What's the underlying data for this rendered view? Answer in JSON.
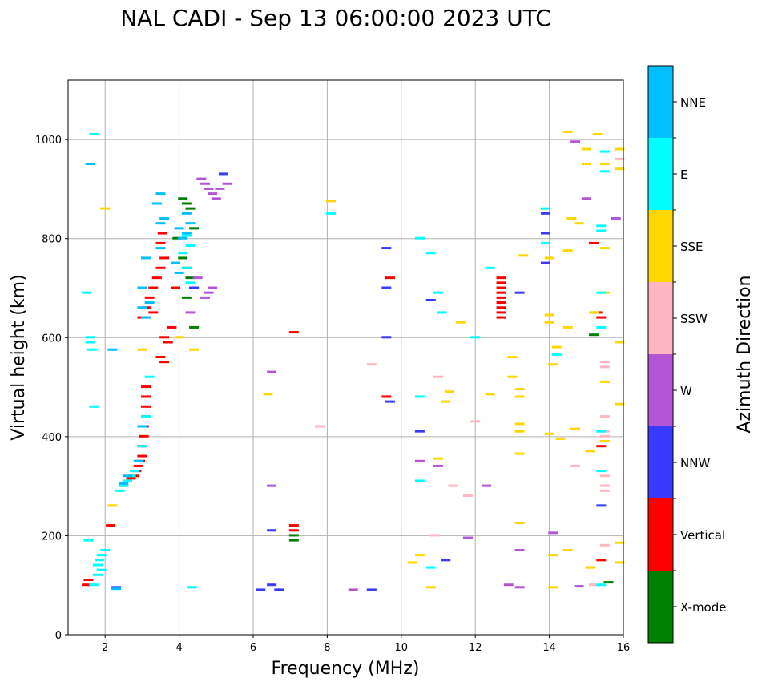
{
  "chart_data": {
    "type": "scatter",
    "title": "NAL CADI - Sep 13 06:00:00 2023 UTC",
    "xlabel": "Frequency (MHz)",
    "ylabel": "Virtual height (km)",
    "xlim": [
      1,
      16
    ],
    "ylim": [
      0,
      1120
    ],
    "xticks": [
      2,
      4,
      6,
      8,
      10,
      12,
      14,
      16
    ],
    "yticks": [
      0,
      200,
      400,
      600,
      800,
      1000
    ],
    "grid": true,
    "colorbar": {
      "label": "Azimuth Direction",
      "categories": [
        {
          "name": "X-mode",
          "color": "#008000"
        },
        {
          "name": "Vertical",
          "color": "#ff0000"
        },
        {
          "name": "NNW",
          "color": "#3a3aff"
        },
        {
          "name": "W",
          "color": "#b455d6"
        },
        {
          "name": "SSW",
          "color": "#ffb6c1"
        },
        {
          "name": "SSE",
          "color": "#ffd700"
        },
        {
          "name": "E",
          "color": "#00ffff"
        },
        {
          "name": "NNE",
          "color": "#00bfff"
        }
      ]
    },
    "series": [
      {
        "name": "Vertical",
        "points": [
          [
            1.5,
            100
          ],
          [
            1.55,
            110
          ],
          [
            2.15,
            220
          ],
          [
            2.5,
            300
          ],
          [
            2.6,
            310
          ],
          [
            2.7,
            315
          ],
          [
            2.8,
            320
          ],
          [
            2.85,
            330
          ],
          [
            2.9,
            340
          ],
          [
            2.95,
            350
          ],
          [
            3.0,
            360
          ],
          [
            3.0,
            380
          ],
          [
            3.05,
            400
          ],
          [
            3.05,
            420
          ],
          [
            3.1,
            440
          ],
          [
            3.1,
            460
          ],
          [
            3.1,
            480
          ],
          [
            3.1,
            500
          ],
          [
            3.0,
            640
          ],
          [
            3.1,
            660
          ],
          [
            3.2,
            680
          ],
          [
            3.3,
            700
          ],
          [
            3.4,
            720
          ],
          [
            3.5,
            740
          ],
          [
            3.6,
            760
          ],
          [
            3.5,
            790
          ],
          [
            3.55,
            810
          ],
          [
            3.6,
            600
          ],
          [
            3.7,
            590
          ],
          [
            3.8,
            620
          ],
          [
            3.5,
            560
          ],
          [
            3.6,
            550
          ],
          [
            3.9,
            700
          ],
          [
            3.3,
            650
          ],
          [
            12.7,
            640
          ],
          [
            12.7,
            650
          ],
          [
            12.7,
            660
          ],
          [
            12.7,
            670
          ],
          [
            12.7,
            680
          ],
          [
            12.7,
            690
          ],
          [
            12.7,
            700
          ],
          [
            12.7,
            710
          ],
          [
            12.7,
            720
          ],
          [
            15.2,
            790
          ],
          [
            15.3,
            650
          ],
          [
            15.4,
            640
          ],
          [
            15.4,
            380
          ],
          [
            15.4,
            150
          ],
          [
            9.7,
            720
          ],
          [
            9.6,
            480
          ],
          [
            7.1,
            610
          ],
          [
            7.1,
            220
          ],
          [
            7.1,
            210
          ]
        ]
      },
      {
        "name": "X-mode",
        "points": [
          [
            4.1,
            880
          ],
          [
            4.2,
            870
          ],
          [
            4.3,
            860
          ],
          [
            4.4,
            820
          ],
          [
            4.1,
            760
          ],
          [
            4.2,
            740
          ],
          [
            4.3,
            720
          ],
          [
            4.4,
            700
          ],
          [
            4.2,
            680
          ],
          [
            3.95,
            800
          ],
          [
            7.1,
            200
          ],
          [
            7.1,
            190
          ],
          [
            15.2,
            605
          ],
          [
            15.6,
            105
          ],
          [
            4.4,
            620
          ]
        ]
      },
      {
        "name": "NNW",
        "points": [
          [
            2.3,
            95
          ],
          [
            5.2,
            930
          ],
          [
            6.5,
            210
          ],
          [
            6.5,
            100
          ],
          [
            6.2,
            90
          ],
          [
            6.7,
            90
          ],
          [
            9.2,
            90
          ],
          [
            9.6,
            780
          ],
          [
            9.6,
            700
          ],
          [
            9.6,
            600
          ],
          [
            9.7,
            470
          ],
          [
            10.5,
            410
          ],
          [
            10.8,
            675
          ],
          [
            11.2,
            150
          ],
          [
            13.2,
            690
          ],
          [
            13.9,
            850
          ],
          [
            13.9,
            810
          ],
          [
            13.9,
            750
          ],
          [
            15.4,
            260
          ],
          [
            4.4,
            700
          ]
        ]
      },
      {
        "name": "W",
        "points": [
          [
            4.6,
            920
          ],
          [
            4.7,
            910
          ],
          [
            4.8,
            900
          ],
          [
            4.9,
            890
          ],
          [
            5.0,
            880
          ],
          [
            5.1,
            900
          ],
          [
            5.3,
            910
          ],
          [
            4.7,
            680
          ],
          [
            4.8,
            690
          ],
          [
            4.9,
            700
          ],
          [
            4.5,
            720
          ],
          [
            4.3,
            650
          ],
          [
            12.3,
            300
          ],
          [
            13.2,
            170
          ],
          [
            12.9,
            100
          ],
          [
            13.2,
            95
          ],
          [
            8.7,
            90
          ],
          [
            10.5,
            350
          ],
          [
            11.0,
            340
          ],
          [
            14.1,
            205
          ],
          [
            14.7,
            995
          ],
          [
            15.0,
            880
          ],
          [
            15.8,
            840
          ],
          [
            6.5,
            300
          ],
          [
            6.5,
            530
          ],
          [
            11.8,
            195
          ],
          [
            14.8,
            97
          ]
        ]
      },
      {
        "name": "SSW",
        "points": [
          [
            15.5,
            410
          ],
          [
            15.5,
            400
          ],
          [
            15.5,
            320
          ],
          [
            15.5,
            300
          ],
          [
            15.5,
            290
          ],
          [
            15.5,
            180
          ],
          [
            15.5,
            440
          ],
          [
            15.5,
            550
          ],
          [
            15.5,
            540
          ],
          [
            15.9,
            960
          ],
          [
            15.2,
            100
          ],
          [
            11.4,
            300
          ],
          [
            11.0,
            520
          ],
          [
            9.2,
            545
          ],
          [
            10.9,
            200
          ],
          [
            12.0,
            430
          ],
          [
            14.7,
            340
          ],
          [
            11.8,
            280
          ],
          [
            7.8,
            420
          ]
        ]
      },
      {
        "name": "SSE",
        "points": [
          [
            14.5,
            1015
          ],
          [
            15.3,
            1010
          ],
          [
            15.0,
            980
          ],
          [
            15.9,
            980
          ],
          [
            15.0,
            950
          ],
          [
            15.5,
            950
          ],
          [
            15.9,
            940
          ],
          [
            14.6,
            840
          ],
          [
            14.8,
            830
          ],
          [
            14.5,
            775
          ],
          [
            13.3,
            765
          ],
          [
            14.0,
            760
          ],
          [
            14.0,
            645
          ],
          [
            14.0,
            630
          ],
          [
            13.0,
            560
          ],
          [
            13.0,
            520
          ],
          [
            13.2,
            495
          ],
          [
            13.2,
            480
          ],
          [
            12.4,
            485
          ],
          [
            13.2,
            425
          ],
          [
            13.2,
            410
          ],
          [
            13.2,
            365
          ],
          [
            13.2,
            225
          ],
          [
            14.0,
            405
          ],
          [
            14.3,
            395
          ],
          [
            14.7,
            415
          ],
          [
            15.1,
            370
          ],
          [
            15.5,
            390
          ],
          [
            15.5,
            510
          ],
          [
            15.9,
            465
          ],
          [
            15.9,
            590
          ],
          [
            15.9,
            185
          ],
          [
            15.9,
            145
          ],
          [
            15.1,
            135
          ],
          [
            14.1,
            160
          ],
          [
            14.5,
            170
          ],
          [
            14.1,
            95
          ],
          [
            14.5,
            620
          ],
          [
            15.2,
            650
          ],
          [
            10.3,
            145
          ],
          [
            10.5,
            160
          ],
          [
            10.8,
            95
          ],
          [
            11.2,
            470
          ],
          [
            11.0,
            355
          ],
          [
            11.3,
            490
          ],
          [
            11.6,
            630
          ],
          [
            8.1,
            875
          ],
          [
            6.4,
            485
          ],
          [
            3.0,
            575
          ],
          [
            4.4,
            575
          ],
          [
            2.2,
            260
          ],
          [
            2.0,
            860
          ],
          [
            4.0,
            600
          ],
          [
            15.5,
            780
          ],
          [
            15.5,
            690
          ],
          [
            14.2,
            580
          ],
          [
            14.1,
            545
          ]
        ]
      },
      {
        "name": "E",
        "points": [
          [
            1.7,
            100
          ],
          [
            1.8,
            120
          ],
          [
            1.9,
            130
          ],
          [
            1.8,
            140
          ],
          [
            1.85,
            150
          ],
          [
            1.9,
            160
          ],
          [
            2.0,
            170
          ],
          [
            1.55,
            190
          ],
          [
            1.5,
            690
          ],
          [
            1.6,
            600
          ],
          [
            1.6,
            590
          ],
          [
            1.65,
            575
          ],
          [
            1.7,
            460
          ],
          [
            1.7,
            1010
          ],
          [
            2.4,
            290
          ],
          [
            2.5,
            300
          ],
          [
            2.6,
            310
          ],
          [
            2.7,
            320
          ],
          [
            2.8,
            330
          ],
          [
            3.0,
            380
          ],
          [
            3.1,
            440
          ],
          [
            3.2,
            520
          ],
          [
            4.2,
            805
          ],
          [
            4.3,
            785
          ],
          [
            4.1,
            770
          ],
          [
            4.2,
            740
          ],
          [
            4.3,
            710
          ],
          [
            4.35,
            95
          ],
          [
            8.1,
            850
          ],
          [
            10.5,
            800
          ],
          [
            10.8,
            770
          ],
          [
            11.0,
            690
          ],
          [
            11.1,
            650
          ],
          [
            12.0,
            600
          ],
          [
            12.4,
            740
          ],
          [
            10.5,
            310
          ],
          [
            10.5,
            480
          ],
          [
            10.8,
            135
          ],
          [
            13.9,
            860
          ],
          [
            13.9,
            790
          ],
          [
            14.2,
            565
          ],
          [
            15.4,
            825
          ],
          [
            15.4,
            815
          ],
          [
            15.4,
            690
          ],
          [
            15.4,
            620
          ],
          [
            15.4,
            410
          ],
          [
            15.4,
            330
          ],
          [
            15.4,
            100
          ],
          [
            15.5,
            935
          ],
          [
            15.5,
            975
          ]
        ]
      },
      {
        "name": "NNE",
        "points": [
          [
            1.6,
            950
          ],
          [
            2.2,
            575
          ],
          [
            2.3,
            92
          ],
          [
            3.0,
            660
          ],
          [
            3.1,
            640
          ],
          [
            3.2,
            670
          ],
          [
            3.0,
            700
          ],
          [
            3.1,
            760
          ],
          [
            3.5,
            830
          ],
          [
            3.6,
            840
          ],
          [
            3.5,
            890
          ],
          [
            3.4,
            870
          ],
          [
            3.5,
            780
          ],
          [
            4.0,
            820
          ],
          [
            4.1,
            800
          ],
          [
            4.2,
            810
          ],
          [
            4.3,
            830
          ],
          [
            4.2,
            850
          ],
          [
            3.9,
            750
          ],
          [
            4.0,
            730
          ],
          [
            2.9,
            350
          ],
          [
            3.0,
            420
          ],
          [
            2.5,
            305
          ],
          [
            2.6,
            320
          ]
        ]
      }
    ]
  }
}
